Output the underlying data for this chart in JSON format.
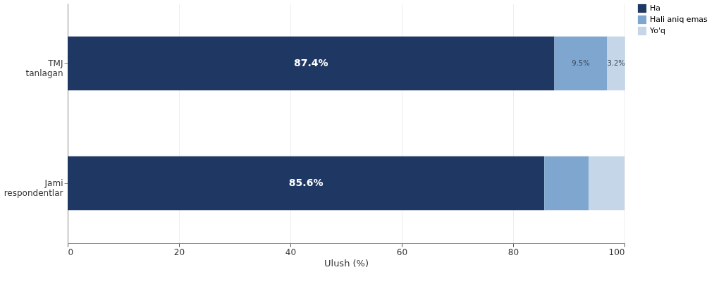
{
  "chart_data": {
    "type": "bar",
    "orientation": "horizontal",
    "stacked": true,
    "categories": [
      "TMJ\ntanlagan",
      "Jami\nrespondentlar"
    ],
    "series": [
      {
        "name": "Ha",
        "color": "#1f3763",
        "values": [
          87.4,
          85.6
        ],
        "value_labels": [
          "87.4%",
          "85.6%"
        ]
      },
      {
        "name": "Hali aniq emas",
        "color": "#7fa6cf",
        "values": [
          9.5,
          8.0
        ],
        "value_labels": [
          "9.5%",
          null
        ]
      },
      {
        "name": "Yo'q",
        "color": "#c6d6e9",
        "values": [
          3.2,
          6.4
        ],
        "value_labels": [
          "3.2%",
          null
        ]
      }
    ],
    "xlabel": "Ulush (%)",
    "xlim": [
      0,
      100
    ],
    "xticks": [
      0,
      20,
      40,
      60,
      80,
      100
    ],
    "grid": "x",
    "legend": "right"
  }
}
